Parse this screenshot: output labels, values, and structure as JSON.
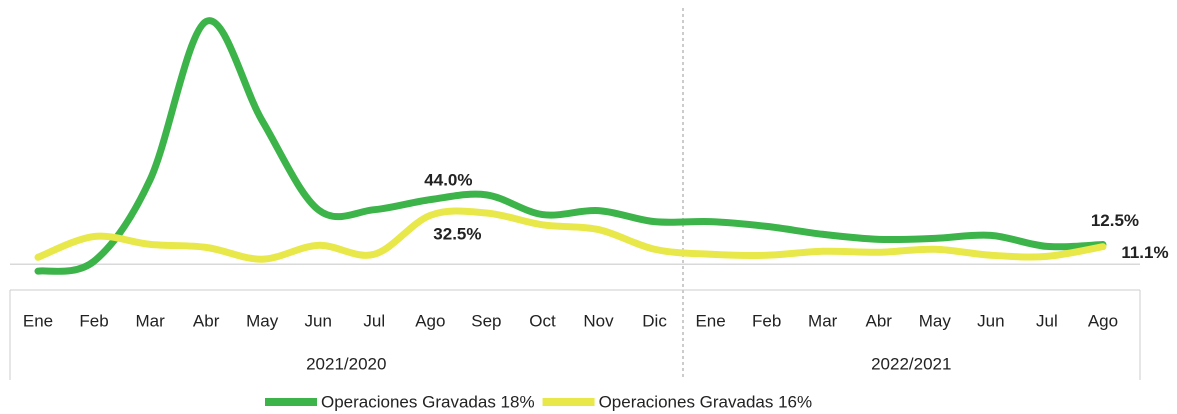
{
  "chart_data": {
    "type": "line",
    "category_groups": [
      {
        "label": "2021/2020",
        "categories": [
          "Ene",
          "Feb",
          "Mar",
          "Abr",
          "May",
          "Jun",
          "Jul",
          "Ago",
          "Sep",
          "Oct",
          "Nov",
          "Dic"
        ]
      },
      {
        "label": "2022/2021",
        "categories": [
          "Ene",
          "Feb",
          "Mar",
          "Abr",
          "May",
          "Jun",
          "Jul",
          "Ago"
        ]
      }
    ],
    "series": [
      {
        "name": "Operaciones Gravadas 18%",
        "color": "#3cb44a",
        "values": [
          -4.4,
          1.9,
          53.6,
          154,
          91,
          34.6,
          34.6,
          41,
          44.0,
          31.5,
          34,
          27,
          27,
          24,
          19,
          15.8,
          16.4,
          18.3,
          11.3,
          12.5
        ],
        "value_labels": [
          null,
          null,
          null,
          null,
          null,
          null,
          null,
          null,
          "44.0%",
          null,
          null,
          null,
          null,
          null,
          null,
          null,
          null,
          null,
          null,
          "12.5%"
        ]
      },
      {
        "name": "Operaciones Gravadas 16%",
        "color": "#e8e84a",
        "values": [
          4.4,
          17.6,
          12.6,
          10.7,
          3.2,
          12,
          6.3,
          31,
          32.5,
          25,
          22,
          9.5,
          6.3,
          5.7,
          8.2,
          7.6,
          9.5,
          5.7,
          5,
          11.1
        ],
        "value_labels": [
          null,
          null,
          null,
          null,
          null,
          null,
          null,
          null,
          "32.5%",
          null,
          null,
          null,
          null,
          null,
          null,
          null,
          null,
          null,
          null,
          "11.1%"
        ]
      }
    ],
    "ylim": [
      -10,
      160
    ]
  }
}
